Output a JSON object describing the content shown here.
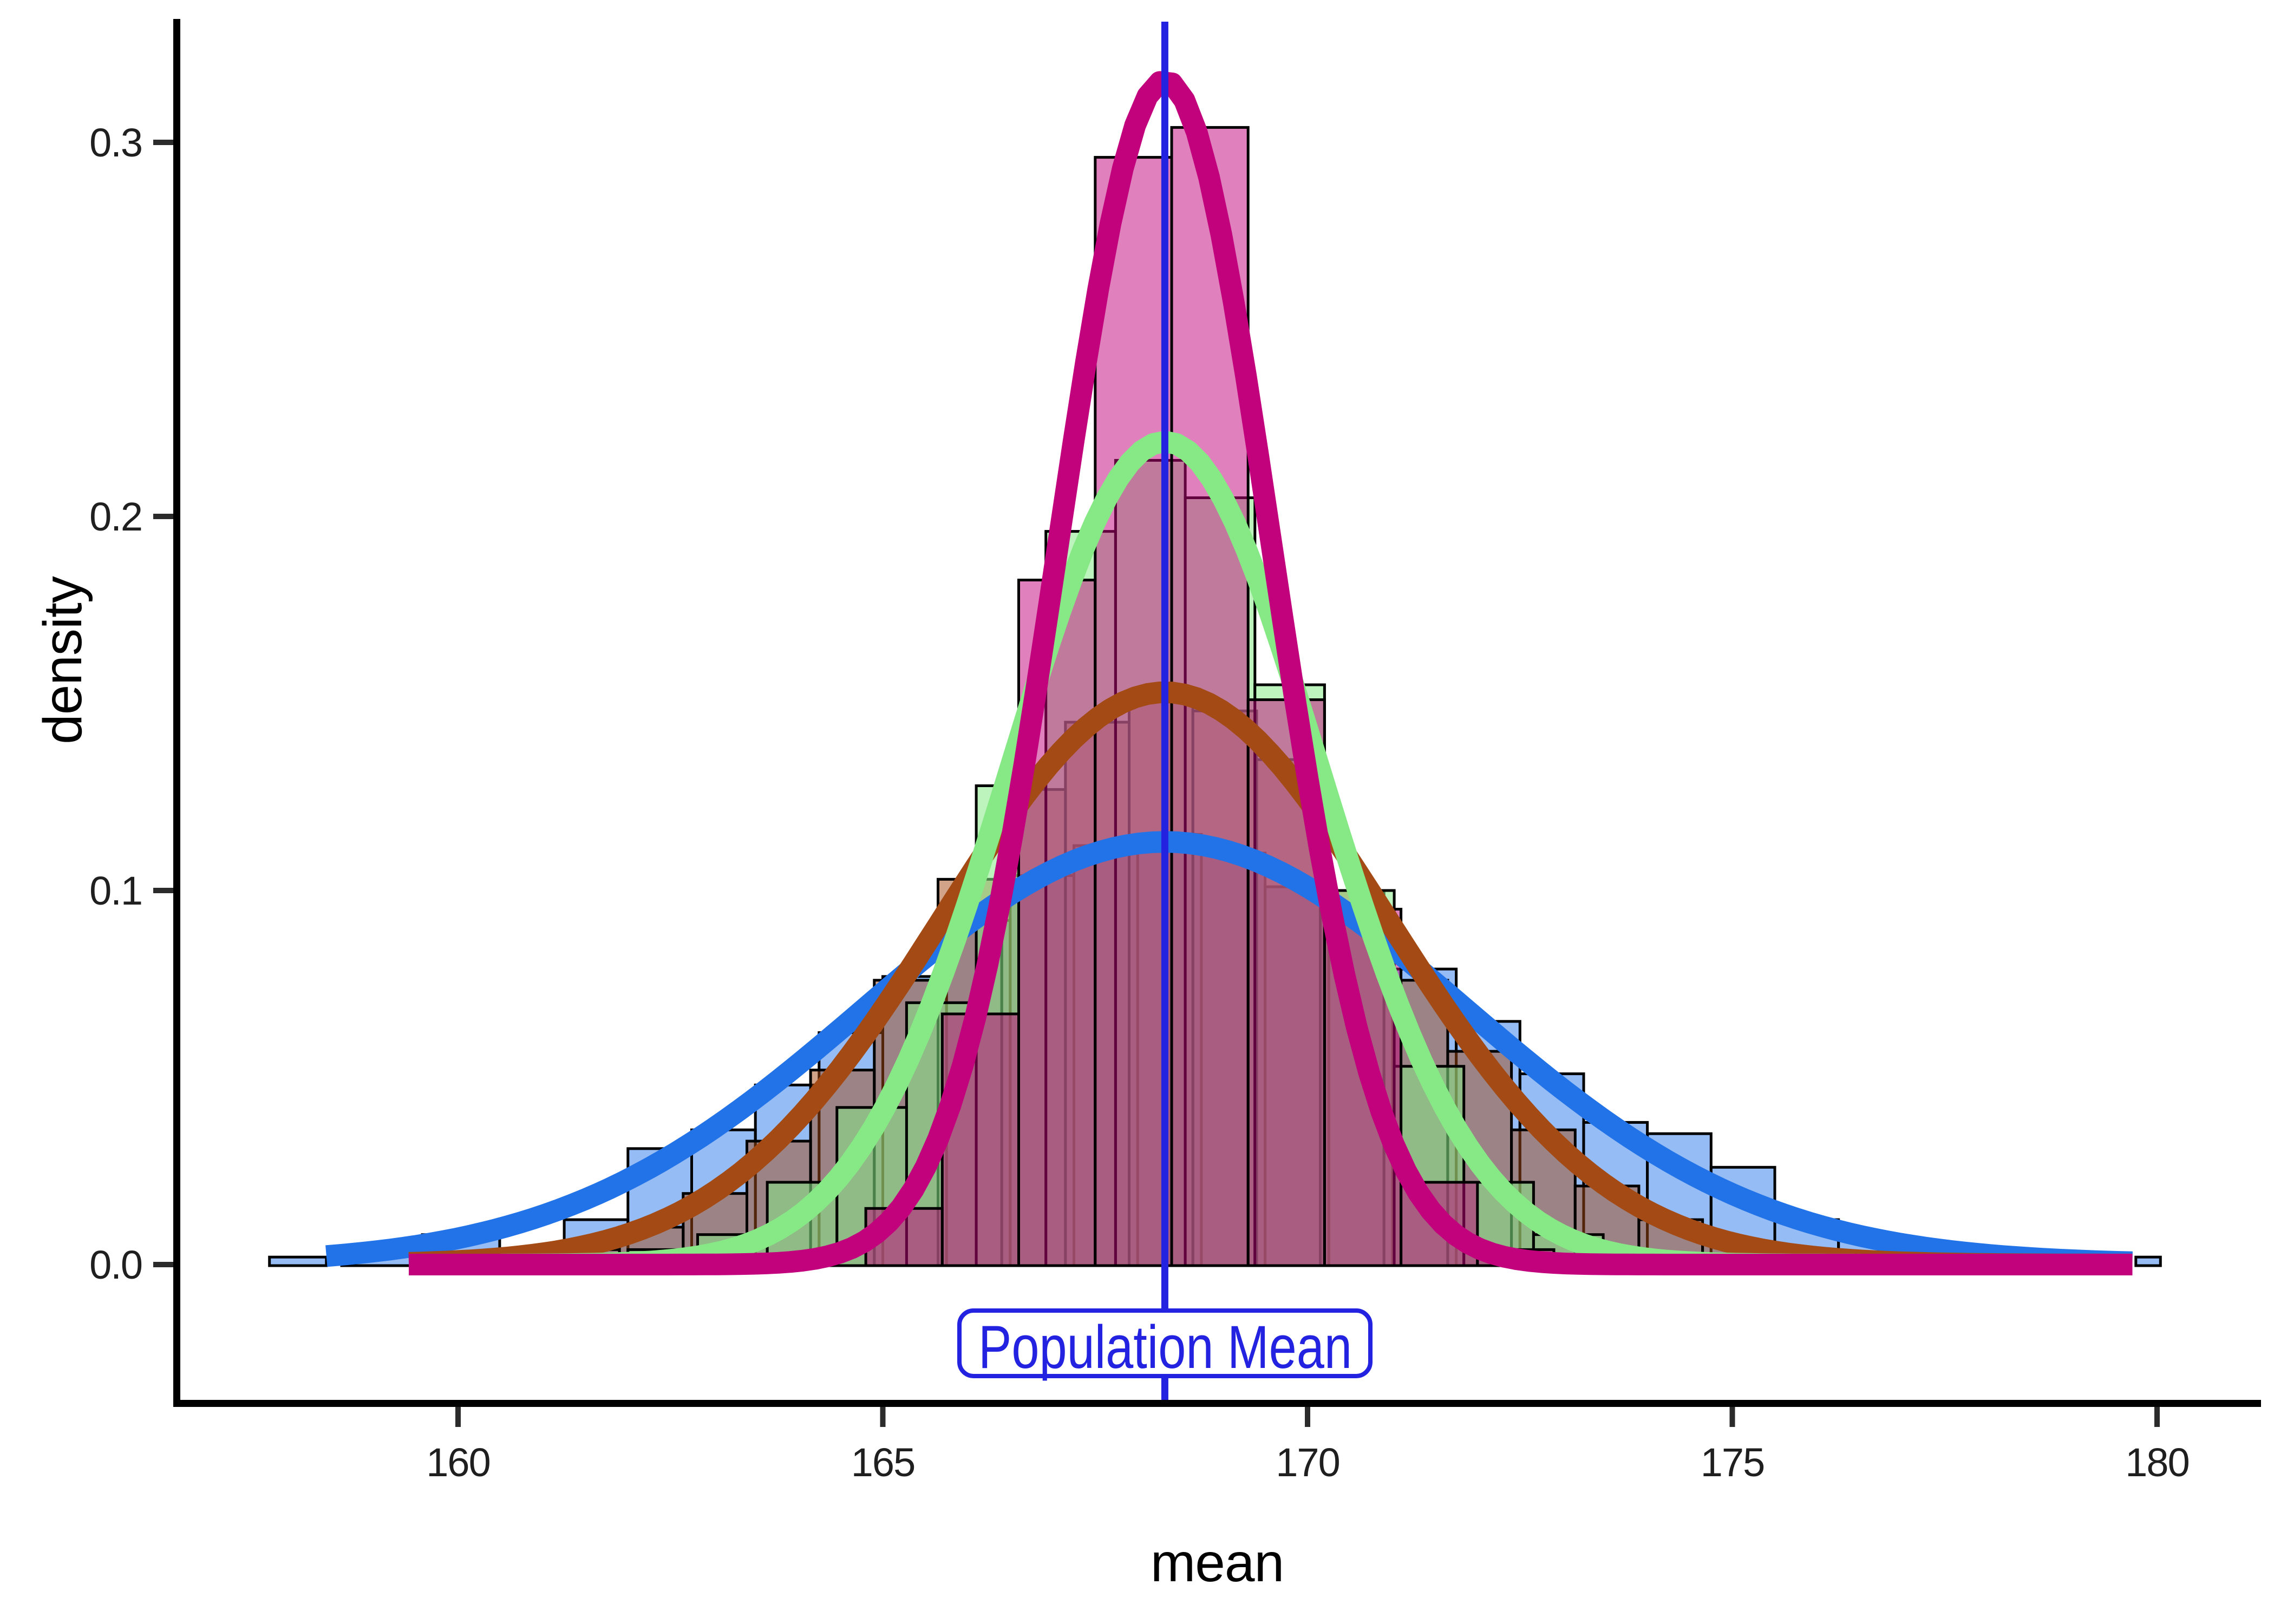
{
  "chart_data": {
    "type": "histogram",
    "xlabel": "mean",
    "ylabel": "density",
    "x_ticks": [
      160,
      165,
      170,
      175,
      180
    ],
    "y_ticks": [
      {
        "value": 0.0,
        "label": "0.0"
      },
      {
        "value": 0.1,
        "label": "0.1"
      },
      {
        "value": 0.2,
        "label": "0.2"
      },
      {
        "value": 0.3,
        "label": "0.3"
      }
    ],
    "xlim": [
      156.6,
      181.2
    ],
    "ylim": [
      -0.037,
      0.333
    ],
    "grid": "off",
    "legend": "none",
    "population_mean": 168.32,
    "vline_label": "Population Mean",
    "vline_color": "#2222E0",
    "curves": [
      {
        "name": "blue-widest",
        "color": "#2273E8",
        "mean": 168.32,
        "sd": 3.53,
        "peak": 0.113,
        "x_start": 158.45,
        "x_end": 179.71
      },
      {
        "name": "brown",
        "color": "#A34A15",
        "mean": 168.32,
        "sd": 2.61,
        "peak": 0.153,
        "x_start": 159.42,
        "x_end": 179.71
      },
      {
        "name": "green",
        "color": "#86E986",
        "mean": 168.32,
        "sd": 1.81,
        "peak": 0.22,
        "x_start": 160.5,
        "x_end": 179.71
      },
      {
        "name": "magenta-narrowest",
        "color": "#C2017C",
        "mean": 168.32,
        "sd": 1.26,
        "peak": 0.3165,
        "x_start": 159.42,
        "x_end": 179.71
      }
    ],
    "histograms": [
      {
        "name": "blue",
        "color": "#2273E8",
        "fill_opacity": 0.48,
        "bars": [
          [
            157.78,
            158.45,
            0.002
          ],
          [
            158.63,
            159.58,
            0.0045
          ],
          [
            159.58,
            160.49,
            0.008
          ],
          [
            161.25,
            162.0,
            0.012
          ],
          [
            162.0,
            162.75,
            0.031
          ],
          [
            162.75,
            163.5,
            0.036
          ],
          [
            163.5,
            164.25,
            0.048
          ],
          [
            164.25,
            165.0,
            0.062
          ],
          [
            165.0,
            165.75,
            0.077
          ],
          [
            165.75,
            166.5,
            0.092
          ],
          [
            166.5,
            167.25,
            0.104
          ],
          [
            167.25,
            168.0,
            0.112
          ],
          [
            168.0,
            168.75,
            0.115
          ],
          [
            168.75,
            169.5,
            0.11
          ],
          [
            169.5,
            170.25,
            0.101
          ],
          [
            170.25,
            171.0,
            0.093
          ],
          [
            171.0,
            171.75,
            0.079
          ],
          [
            171.75,
            172.5,
            0.065
          ],
          [
            172.5,
            173.25,
            0.051
          ],
          [
            173.25,
            174.0,
            0.038
          ],
          [
            174.0,
            174.75,
            0.035
          ],
          [
            174.75,
            175.5,
            0.026
          ],
          [
            175.5,
            176.25,
            0.012
          ],
          [
            176.25,
            177.0,
            0.008
          ],
          [
            177.0,
            177.75,
            0.004
          ],
          [
            177.75,
            178.5,
            0.002
          ],
          [
            179.75,
            180.04,
            0.002
          ]
        ]
      },
      {
        "name": "brown",
        "color": "#A34A15",
        "fill_opacity": 0.5,
        "bars": [
          [
            160.4,
            161.15,
            0.002
          ],
          [
            161.15,
            161.9,
            0.004
          ],
          [
            161.9,
            162.65,
            0.01
          ],
          [
            162.65,
            163.4,
            0.019
          ],
          [
            163.4,
            164.15,
            0.033
          ],
          [
            164.15,
            164.9,
            0.052
          ],
          [
            164.9,
            165.65,
            0.076
          ],
          [
            165.65,
            166.4,
            0.103
          ],
          [
            166.4,
            167.15,
            0.127
          ],
          [
            167.15,
            167.9,
            0.145
          ],
          [
            167.9,
            168.65,
            0.153
          ],
          [
            168.65,
            169.4,
            0.148
          ],
          [
            169.4,
            170.15,
            0.135
          ],
          [
            170.15,
            170.9,
            0.1
          ],
          [
            170.9,
            171.65,
            0.076
          ],
          [
            171.65,
            172.4,
            0.057
          ],
          [
            172.4,
            173.15,
            0.036
          ],
          [
            173.15,
            173.9,
            0.021
          ],
          [
            173.9,
            174.65,
            0.012
          ],
          [
            174.65,
            175.4,
            0.006
          ],
          [
            175.4,
            176.15,
            0.003
          ]
        ]
      },
      {
        "name": "green",
        "color": "#86E986",
        "fill_opacity": 0.55,
        "bars": [
          [
            162.0,
            162.82,
            0.004
          ],
          [
            162.82,
            163.64,
            0.008
          ],
          [
            163.64,
            164.46,
            0.022
          ],
          [
            164.46,
            165.28,
            0.042
          ],
          [
            165.28,
            166.1,
            0.07
          ],
          [
            166.1,
            166.92,
            0.128
          ],
          [
            166.92,
            167.74,
            0.196
          ],
          [
            167.74,
            168.56,
            0.215
          ],
          [
            168.56,
            169.38,
            0.205
          ],
          [
            169.38,
            170.2,
            0.155
          ],
          [
            170.2,
            171.02,
            0.1
          ],
          [
            171.02,
            171.84,
            0.053
          ],
          [
            171.84,
            172.66,
            0.022
          ],
          [
            172.66,
            173.48,
            0.008
          ],
          [
            173.48,
            174.3,
            0.003
          ]
        ]
      },
      {
        "name": "pink",
        "color": "#C2017C",
        "fill_opacity": 0.5,
        "bars": [
          [
            164.8,
            165.7,
            0.015
          ],
          [
            165.7,
            166.6,
            0.067
          ],
          [
            166.6,
            167.5,
            0.183
          ],
          [
            167.5,
            168.4,
            0.296
          ],
          [
            168.4,
            169.3,
            0.304
          ],
          [
            169.3,
            170.2,
            0.151
          ],
          [
            170.2,
            171.1,
            0.095
          ],
          [
            171.1,
            172.0,
            0.022
          ],
          [
            172.0,
            172.9,
            0.004
          ]
        ]
      }
    ]
  }
}
